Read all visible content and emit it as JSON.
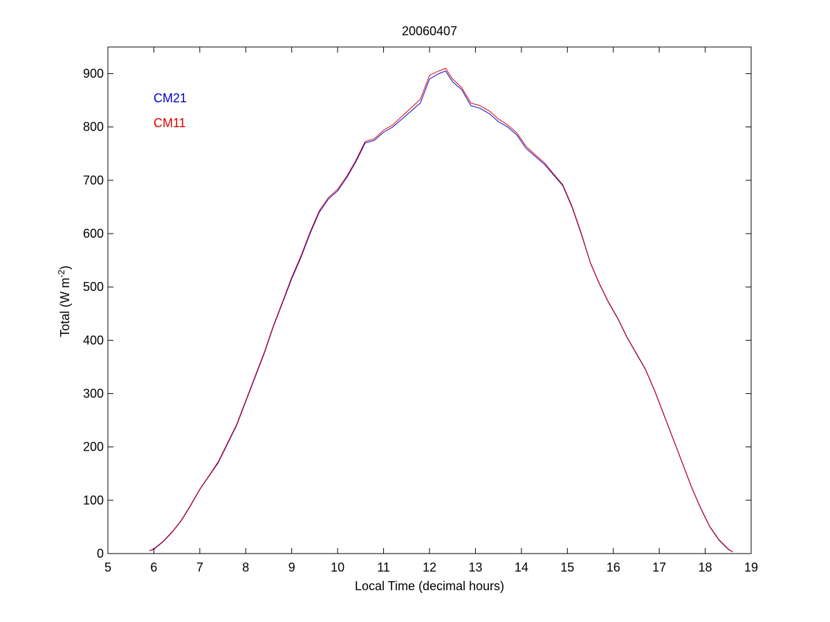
{
  "chart_data": {
    "type": "line",
    "title": "20060407",
    "xlabel": "Local Time (decimal hours)",
    "ylabel_main": "Total (W m",
    "ylabel_sup": "-2",
    "ylabel_close": ")",
    "xlim": [
      5,
      19
    ],
    "ylim": [
      0,
      950
    ],
    "xticks": [
      5,
      6,
      7,
      8,
      9,
      10,
      11,
      12,
      13,
      14,
      15,
      16,
      17,
      18,
      19
    ],
    "yticks": [
      0,
      100,
      200,
      300,
      400,
      500,
      600,
      700,
      800,
      900
    ],
    "grid": false,
    "legend_placement": "top-left",
    "series": [
      {
        "name": "CM21",
        "color": "#0000cc",
        "x": [
          5.9,
          6.0,
          6.2,
          6.4,
          6.6,
          6.8,
          7.0,
          7.2,
          7.4,
          7.6,
          7.8,
          8.0,
          8.2,
          8.4,
          8.6,
          8.8,
          9.0,
          9.2,
          9.4,
          9.6,
          9.8,
          10.0,
          10.2,
          10.4,
          10.6,
          10.8,
          11.0,
          11.2,
          11.4,
          11.6,
          11.8,
          12.0,
          12.2,
          12.35,
          12.5,
          12.7,
          12.9,
          13.1,
          13.3,
          13.5,
          13.7,
          13.9,
          14.1,
          14.3,
          14.5,
          14.7,
          14.9,
          15.1,
          15.3,
          15.5,
          15.7,
          15.9,
          16.1,
          16.3,
          16.5,
          16.7,
          16.9,
          17.1,
          17.3,
          17.5,
          17.7,
          17.9,
          18.1,
          18.3,
          18.5,
          18.6
        ],
        "values": [
          5,
          8,
          22,
          40,
          62,
          90,
          120,
          145,
          170,
          205,
          240,
          285,
          330,
          375,
          425,
          470,
          515,
          555,
          600,
          640,
          665,
          680,
          705,
          735,
          770,
          775,
          790,
          800,
          815,
          830,
          845,
          890,
          900,
          905,
          885,
          870,
          840,
          835,
          825,
          810,
          800,
          785,
          760,
          745,
          730,
          710,
          690,
          650,
          600,
          545,
          505,
          470,
          440,
          405,
          375,
          345,
          305,
          260,
          215,
          170,
          125,
          85,
          50,
          25,
          8,
          3
        ]
      },
      {
        "name": "CM11",
        "color": "#dd0000",
        "x": [
          5.9,
          6.0,
          6.2,
          6.4,
          6.6,
          6.8,
          7.0,
          7.2,
          7.4,
          7.6,
          7.8,
          8.0,
          8.2,
          8.4,
          8.6,
          8.8,
          9.0,
          9.2,
          9.4,
          9.6,
          9.8,
          10.0,
          10.2,
          10.4,
          10.6,
          10.8,
          11.0,
          11.2,
          11.4,
          11.6,
          11.8,
          12.0,
          12.2,
          12.35,
          12.5,
          12.7,
          12.9,
          13.1,
          13.3,
          13.5,
          13.7,
          13.9,
          14.1,
          14.3,
          14.5,
          14.7,
          14.9,
          15.1,
          15.3,
          15.5,
          15.7,
          15.9,
          16.1,
          16.3,
          16.5,
          16.7,
          16.9,
          17.1,
          17.3,
          17.5,
          17.7,
          17.9,
          18.1,
          18.3,
          18.5,
          18.6
        ],
        "values": [
          5,
          9,
          23,
          41,
          63,
          91,
          121,
          146,
          172,
          207,
          242,
          287,
          332,
          377,
          427,
          472,
          518,
          558,
          603,
          643,
          668,
          683,
          708,
          738,
          773,
          778,
          794,
          804,
          820,
          836,
          852,
          897,
          905,
          910,
          890,
          874,
          845,
          840,
          830,
          815,
          804,
          789,
          764,
          748,
          733,
          712,
          692,
          652,
          602,
          546,
          506,
          471,
          441,
          406,
          376,
          346,
          306,
          261,
          216,
          171,
          126,
          86,
          51,
          26,
          9,
          3
        ]
      }
    ]
  }
}
